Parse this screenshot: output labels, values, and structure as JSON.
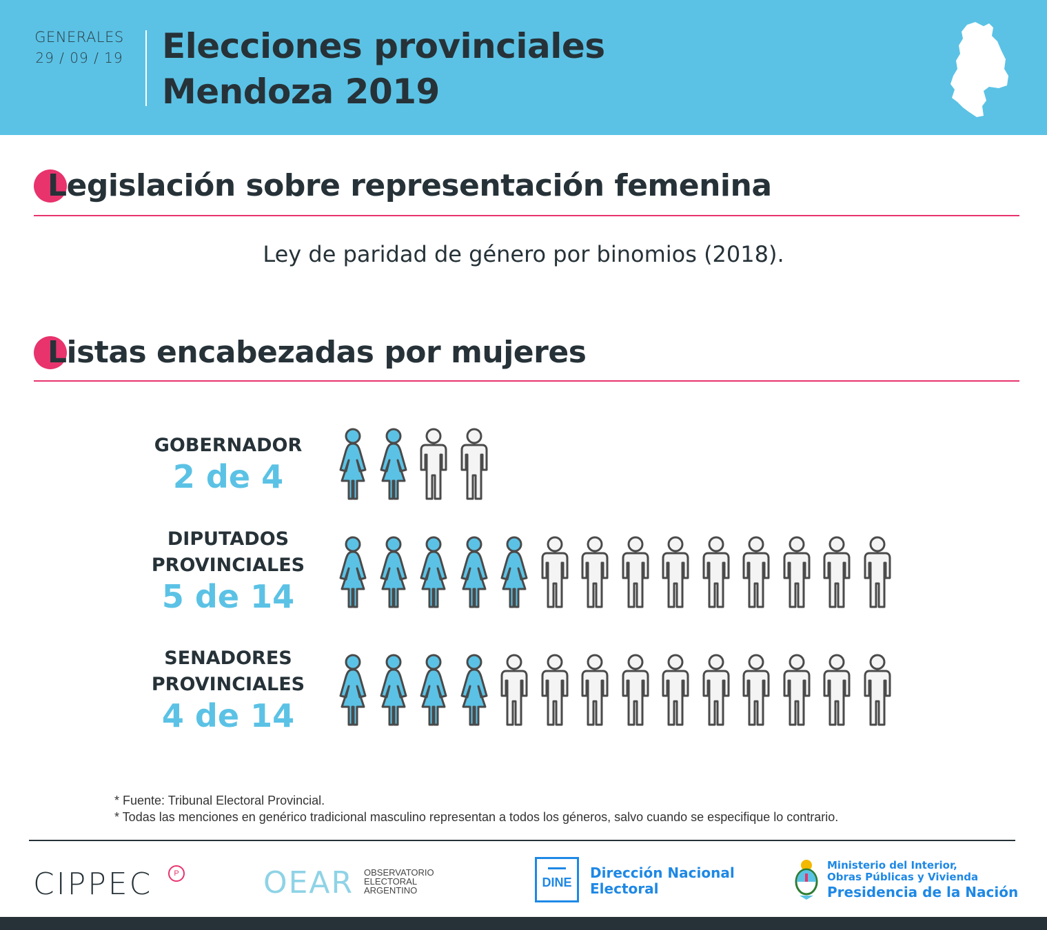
{
  "header": {
    "kicker": "GENERALES",
    "date": "29 / 09 / 19",
    "title_line1": "Elecciones provinciales",
    "title_line2": "Mendoza 2019"
  },
  "section1": {
    "heading": "Legislación sobre representación femenina",
    "text": "Ley de paridad de género por binomios (2018)."
  },
  "section2": {
    "heading": "Listas encabezadas por mujeres",
    "rows": [
      {
        "label_line1": "GOBERNADOR",
        "label_line2": "",
        "count_text": "2 de 4",
        "women": 2,
        "total": 4
      },
      {
        "label_line1": "DIPUTADOS",
        "label_line2": "PROVINCIALES",
        "count_text": "5 de 14",
        "women": 5,
        "total": 14
      },
      {
        "label_line1": "SENADORES",
        "label_line2": "PROVINCIALES",
        "count_text": "4 de 14",
        "women": 4,
        "total": 14
      }
    ]
  },
  "notes": {
    "source": "* Fuente: Tribunal Electoral Provincial.",
    "gender": "* Todas las menciones en genérico tradicional masculino representan a todos los géneros, salvo cuando se especifique lo contrario."
  },
  "logos": {
    "cippec": "CIPPEC",
    "cippec_mark": "P",
    "oear": "OEAR",
    "oear_sub1": "OBSERVATORIO",
    "oear_sub2": "ELECTORAL",
    "oear_sub3": "ARGENTINO",
    "dine_abbr": "DINE",
    "dine_line1": "Dirección Nacional",
    "dine_line2": "Electoral",
    "min_line1": "Ministerio del Interior,",
    "min_line2": "Obras Públicas y Vivienda",
    "min_line3": "Presidencia de la Nación"
  },
  "colors": {
    "accent_blue": "#5bc2e5",
    "accent_pink": "#e8336d",
    "man_fill": "#f4f4f4",
    "outline": "#4a4a4a"
  }
}
